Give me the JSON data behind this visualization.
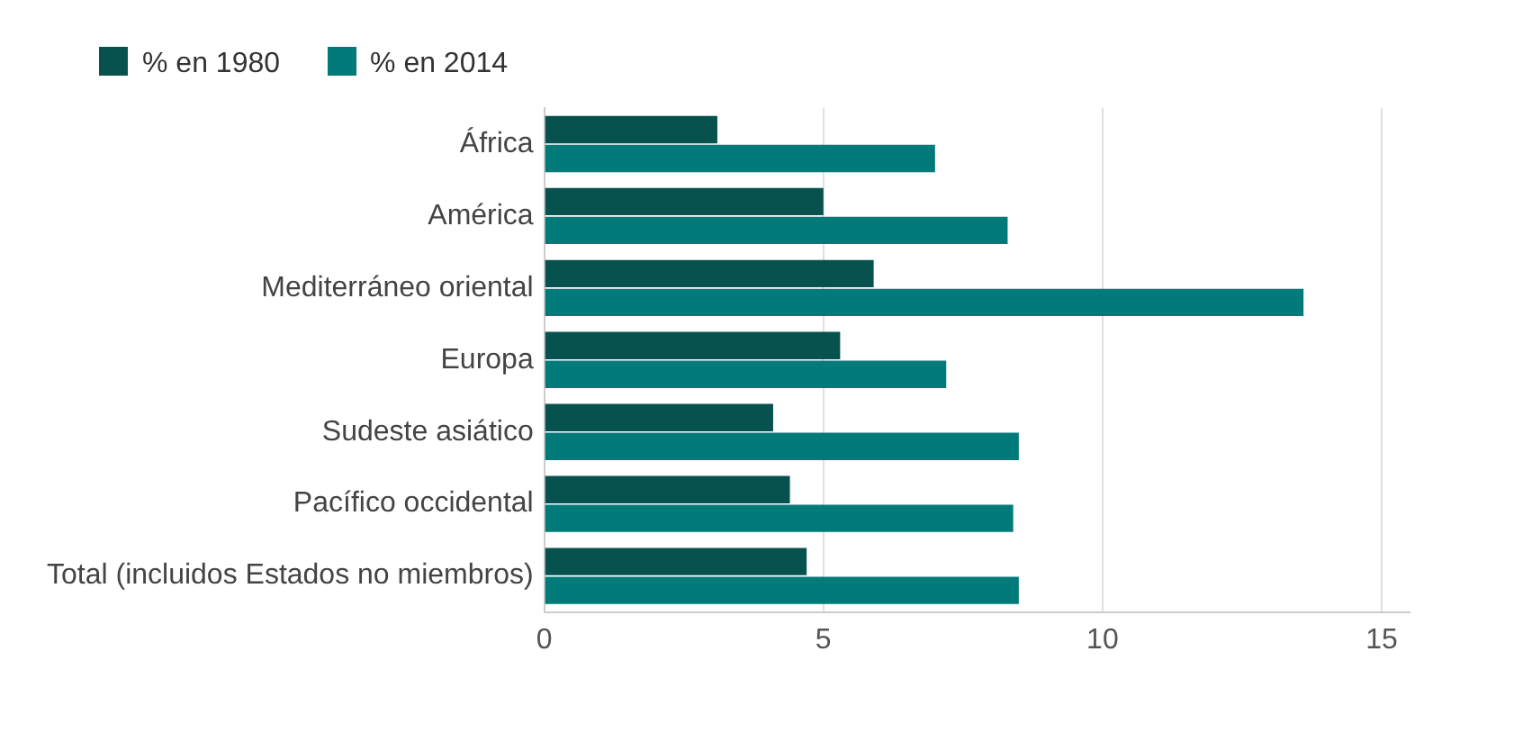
{
  "chart_data": {
    "type": "bar",
    "orientation": "horizontal",
    "categories": [
      "África",
      "América",
      "Mediterráneo oriental",
      "Europa",
      "Sudeste asiático",
      "Pacífico occidental",
      "Total (incluidos Estados no miembros)"
    ],
    "series": [
      {
        "name": "% en 1980",
        "color": "#07524f",
        "values": [
          3.1,
          5.0,
          5.9,
          5.3,
          4.1,
          4.4,
          4.7
        ]
      },
      {
        "name": "% en 2014",
        "color": "#007b7a",
        "values": [
          7.0,
          8.3,
          13.6,
          7.2,
          8.5,
          8.4,
          8.5
        ]
      }
    ],
    "xlim": [
      0,
      15.5
    ],
    "xticks": [
      0,
      5,
      10,
      15
    ],
    "grid": "x",
    "legend": "top left"
  }
}
